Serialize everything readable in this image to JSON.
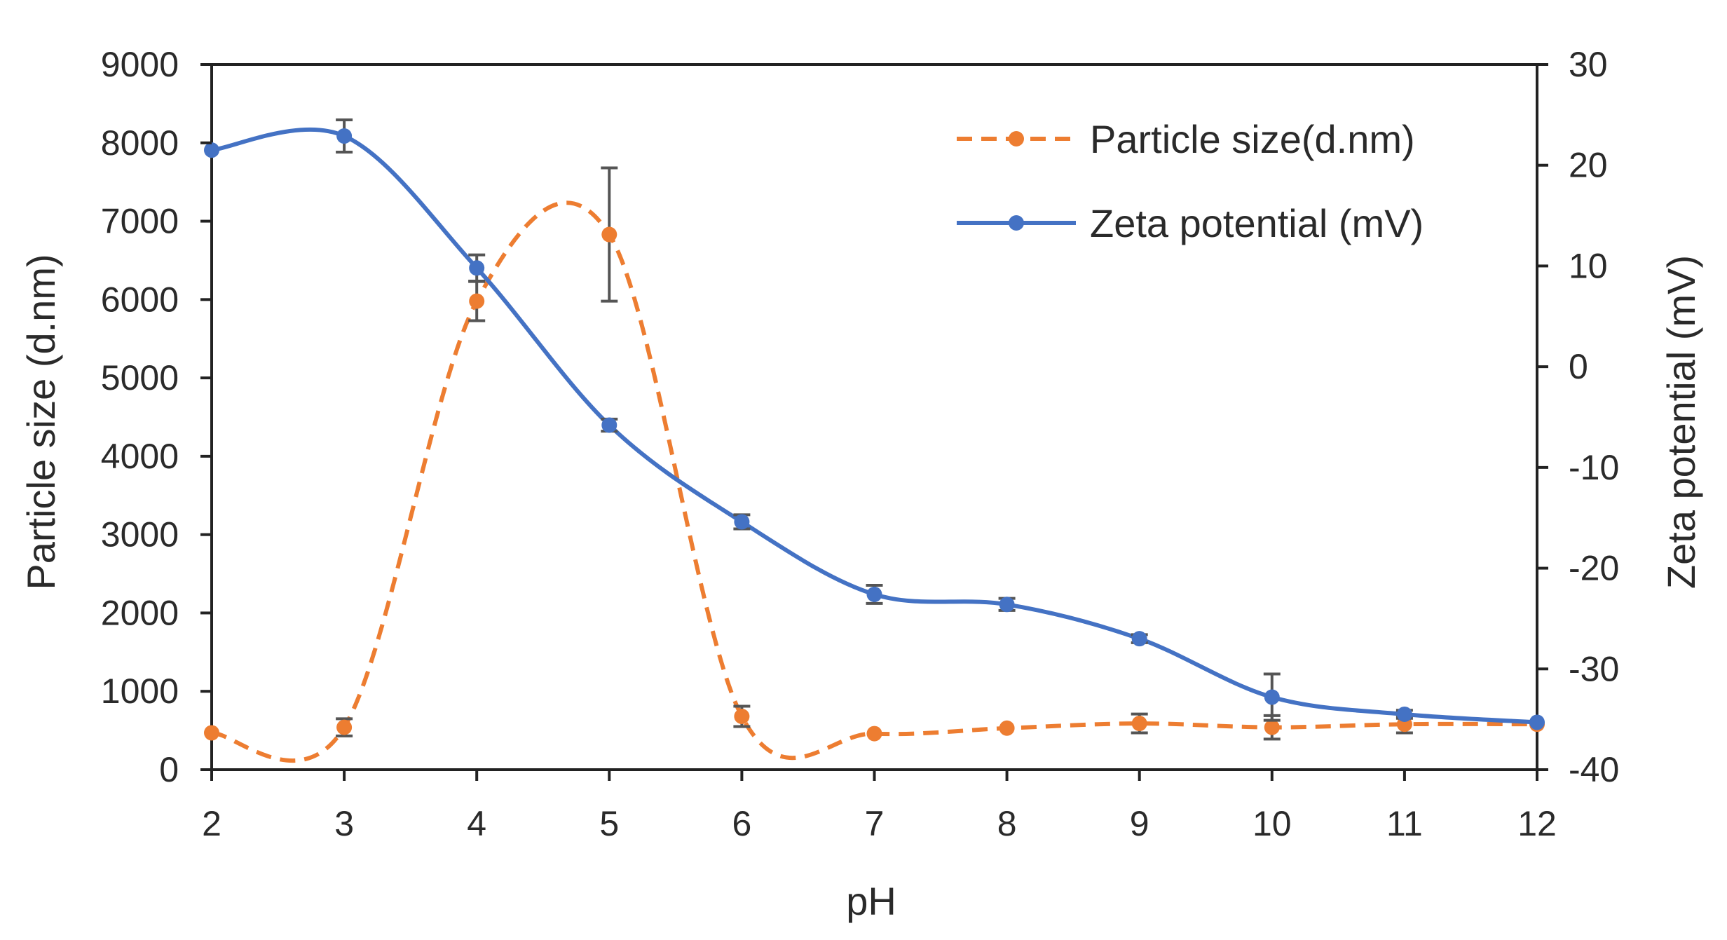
{
  "chart_data": {
    "type": "line",
    "title": "",
    "xlabel": "pH",
    "ylabel": "Particle size (d.nm)",
    "y2label": "Zeta potential (mV)",
    "xlim": [
      2,
      12
    ],
    "ylim": [
      0,
      9000
    ],
    "y2lim": [
      -40,
      30
    ],
    "x_ticks": [
      2,
      3,
      4,
      5,
      6,
      7,
      8,
      9,
      10,
      11,
      12
    ],
    "y_ticks": [
      0,
      1000,
      2000,
      3000,
      4000,
      5000,
      6000,
      7000,
      8000,
      9000
    ],
    "y2_ticks": [
      -40,
      -30,
      -20,
      -10,
      0,
      10,
      20,
      30
    ],
    "grid": false,
    "legend_position": "top-right",
    "x": [
      2,
      3,
      4,
      5,
      6,
      7,
      8,
      9,
      10,
      11,
      12
    ],
    "series": [
      {
        "name": "Particle size(d.nm)",
        "axis": "left",
        "color": "#ED7D31",
        "dashed": true,
        "values": [
          470,
          540,
          5980,
          6830,
          680,
          460,
          530,
          590,
          540,
          580,
          580
        ],
        "errors": [
          0,
          110,
          250,
          850,
          130,
          0,
          0,
          120,
          150,
          110,
          0
        ]
      },
      {
        "name": "Zeta potential (mV)",
        "axis": "right",
        "color": "#4472C4",
        "dashed": false,
        "values": [
          21.5,
          22.9,
          9.8,
          -5.8,
          -15.4,
          -22.6,
          -23.6,
          -27.0,
          -32.8,
          -34.5,
          -35.3
        ],
        "errors": [
          0,
          1.6,
          1.3,
          0.6,
          0.7,
          0.9,
          0.6,
          0.4,
          2.3,
          0.4,
          0
        ]
      }
    ]
  }
}
